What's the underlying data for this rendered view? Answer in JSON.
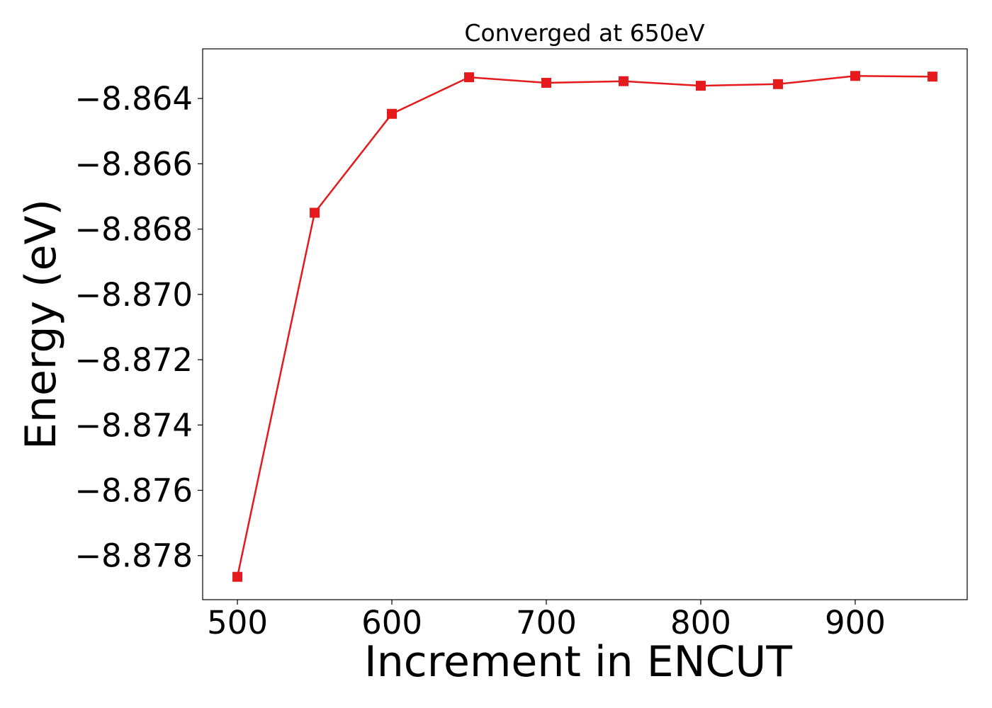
{
  "chart_data": {
    "type": "line",
    "title": "Converged at 650eV",
    "xlabel": "Increment in ENCUT",
    "ylabel": "Energy (eV)",
    "x": [
      500,
      550,
      600,
      650,
      700,
      750,
      800,
      850,
      900,
      950
    ],
    "series": [
      {
        "values": [
          -8.87865,
          -8.8675,
          -8.86447,
          -8.86335,
          -8.86352,
          -8.86347,
          -8.86361,
          -8.86356,
          -8.86331,
          -8.86333
        ],
        "color": "#e41a1c",
        "marker": "square"
      }
    ],
    "xticks": [
      500,
      600,
      700,
      800,
      900
    ],
    "xtick_labels": [
      "500",
      "600",
      "700",
      "800",
      "900"
    ],
    "yticks": [
      -8.864,
      -8.866,
      -8.868,
      -8.87,
      -8.872,
      -8.874,
      -8.876,
      -8.878
    ],
    "ytick_labels": [
      "−8.864",
      "−8.866",
      "−8.868",
      "−8.870",
      "−8.872",
      "−8.874",
      "−8.876",
      "−8.878"
    ],
    "xlim": [
      477.5,
      972.5
    ],
    "ylim": [
      -8.87935,
      -8.86248
    ],
    "grid": false,
    "legend": false
  }
}
